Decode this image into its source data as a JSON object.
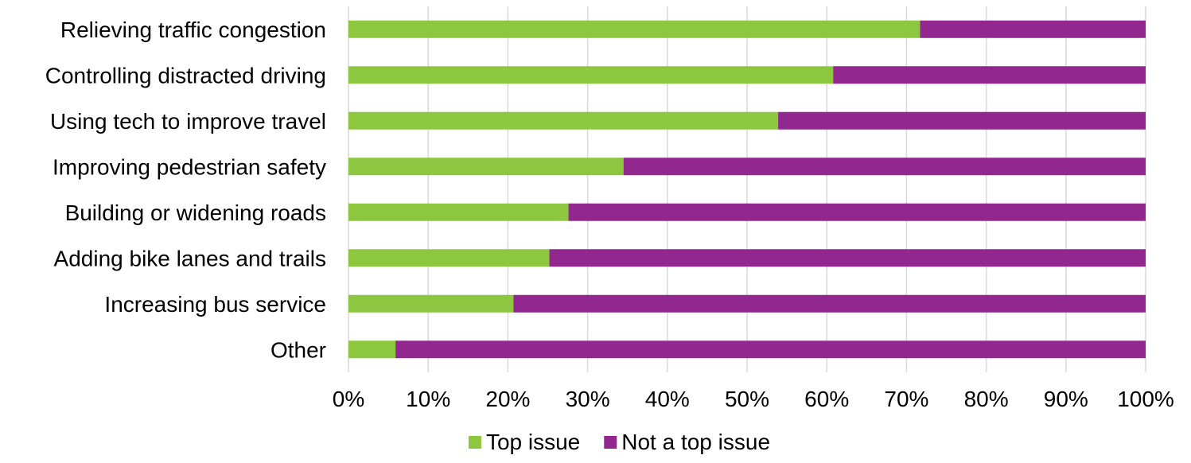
{
  "chart_data": {
    "type": "bar",
    "orientation": "horizontal",
    "stacked": true,
    "categories": [
      "Relieving traffic congestion",
      "Controlling distracted driving",
      "Using tech to improve travel",
      "Improving pedestrian safety",
      "Building or widening roads",
      "Adding bike lanes and trails",
      "Increasing bus service",
      "Other"
    ],
    "series": [
      {
        "name": "Top issue",
        "color": "#8dc63f",
        "values": [
          71.7,
          60.8,
          53.9,
          34.5,
          27.6,
          25.2,
          20.7,
          5.9
        ]
      },
      {
        "name": "Not a top issue",
        "color": "#92278f",
        "values": [
          28.3,
          39.2,
          46.1,
          65.5,
          72.4,
          74.8,
          79.3,
          94.1
        ]
      }
    ],
    "xlim": [
      0,
      100
    ],
    "xticks": [
      "0%",
      "10%",
      "20%",
      "30%",
      "40%",
      "50%",
      "60%",
      "70%",
      "80%",
      "90%",
      "100%"
    ],
    "grid": true,
    "legend_position": "bottom"
  }
}
